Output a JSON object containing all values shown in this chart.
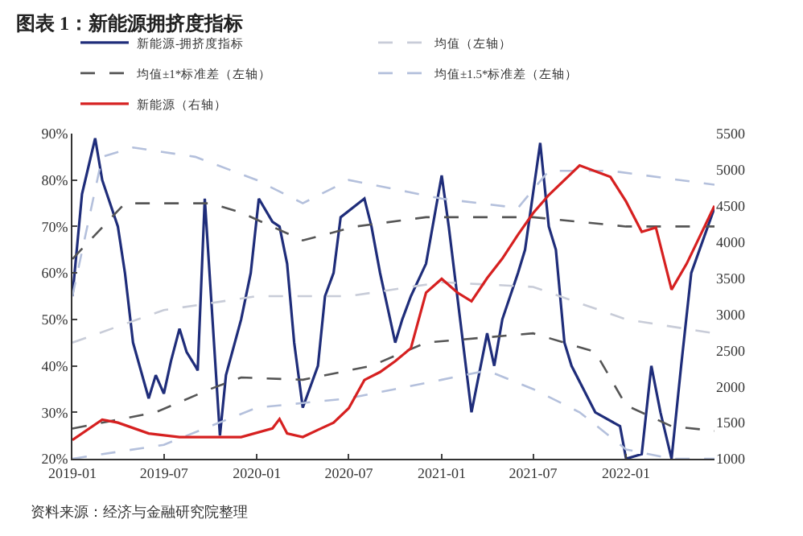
{
  "chart_data": {
    "type": "line",
    "title": "图表 1：新能源拥挤度指标",
    "annotations": [
      "资料来源：经济与金融研究院整理"
    ],
    "xlim": [
      "2019-01-01",
      "2022-06-25"
    ],
    "xticks": [
      {
        "value": "2019-01-01",
        "label": "2019-01"
      },
      {
        "value": "2019-07-01",
        "label": "2019-07"
      },
      {
        "value": "2020-01-01",
        "label": "2020-01"
      },
      {
        "value": "2020-07-01",
        "label": "2020-07"
      },
      {
        "value": "2021-01-01",
        "label": "2021-01"
      },
      {
        "value": "2021-07-01",
        "label": "2021-07"
      },
      {
        "value": "2022-01-01",
        "label": "2022-01"
      }
    ],
    "ylim": [
      20,
      90
    ],
    "yticks": [
      {
        "value": 20,
        "label": "20%"
      },
      {
        "value": 30,
        "label": "30%"
      },
      {
        "value": 40,
        "label": "40%"
      },
      {
        "value": 50,
        "label": "50%"
      },
      {
        "value": 60,
        "label": "60%"
      },
      {
        "value": 70,
        "label": "70%"
      },
      {
        "value": 80,
        "label": "80%"
      },
      {
        "value": 90,
        "label": "90%"
      }
    ],
    "y2lim": [
      1000,
      5500
    ],
    "y2ticks": [
      1000,
      1500,
      2000,
      2500,
      3000,
      3500,
      4000,
      4500,
      5000,
      5500
    ],
    "legend": "top",
    "marker": "none",
    "series": [
      {
        "name": "新能源-拥挤度指标",
        "color": "#1f2d7a",
        "line_style": "solid",
        "x": [
          "2019-01-01",
          "2019-01-20",
          "2019-02-15",
          "2019-03-01",
          "2019-04-01",
          "2019-04-15",
          "2019-05-01",
          "2019-06-01",
          "2019-06-15",
          "2019-07-01",
          "2019-07-15",
          "2019-08-01",
          "2019-08-15",
          "2019-09-01",
          "2019-09-06",
          "2019-09-20",
          "2019-10-20",
          "2019-11-01",
          "2019-12-01",
          "2019-12-20",
          "2020-01-05",
          "2020-02-01",
          "2020-02-15",
          "2020-03-01",
          "2020-03-15",
          "2020-04-01",
          "2020-05-01",
          "2020-05-15",
          "2020-06-01",
          "2020-06-15",
          "2020-08-01",
          "2020-08-15",
          "2020-09-01",
          "2020-10-01",
          "2020-10-15",
          "2020-11-01",
          "2020-12-01",
          "2021-01-01",
          "2021-01-15",
          "2021-03-01",
          "2021-04-01",
          "2021-04-15",
          "2021-05-01",
          "2021-06-01",
          "2021-06-15",
          "2021-07-15",
          "2021-08-01",
          "2021-08-15",
          "2021-09-01",
          "2021-09-15",
          "2021-11-01",
          "2021-12-20",
          "2022-01-01",
          "2022-02-01",
          "2022-02-20",
          "2022-03-10",
          "2022-04-01",
          "2022-04-20",
          "2022-05-10",
          "2022-06-25"
        ],
        "values": [
          55,
          77,
          89,
          80,
          70,
          60,
          45,
          33,
          38,
          34,
          41,
          48,
          43,
          40,
          39,
          76,
          25,
          38,
          50,
          60,
          76,
          71,
          70,
          62,
          45,
          31,
          40,
          55,
          60,
          72,
          76,
          70,
          60,
          45,
          50,
          55,
          62,
          81,
          70,
          30,
          47,
          40,
          50,
          60,
          65,
          88,
          70,
          65,
          45,
          40,
          30,
          27,
          20,
          21,
          40,
          30,
          20,
          40,
          60,
          74
        ]
      },
      {
        "name": "均值（左轴）",
        "color": "#c8ccd8",
        "line_style": "dashed",
        "x": [
          "2019-01-01",
          "2019-07-01",
          "2020-01-01",
          "2020-07-01",
          "2021-01-01",
          "2021-07-01",
          "2022-01-01",
          "2022-06-25"
        ],
        "values": [
          45,
          52,
          55,
          55,
          58,
          57,
          50,
          47
        ]
      },
      {
        "name": "均值±1*标准差（左轴）",
        "color": "#555555",
        "line_style": "dashed",
        "x": [
          "2019-01-01",
          "2019-04-15",
          "2019-10-01",
          "2019-12-01",
          "2020-04-01",
          "2020-07-15",
          "2020-12-01",
          "2021-07-01",
          "2022-01-01",
          "2022-06-25"
        ],
        "values": [
          63,
          75,
          75,
          73,
          67,
          70,
          72,
          72,
          70,
          70
        ]
      },
      {
        "color": "#555555",
        "line_style": "dashed",
        "x": [
          "2019-01-01",
          "2019-06-15",
          "2019-10-01",
          "2019-12-01",
          "2020-04-01",
          "2020-08-15",
          "2020-12-01",
          "2021-07-01",
          "2021-11-01",
          "2022-01-01",
          "2022-04-01",
          "2022-06-25"
        ],
        "values": [
          26.5,
          30,
          35,
          37.5,
          37,
          40,
          45,
          47,
          43,
          31.5,
          27,
          26
        ]
      },
      {
        "name": "均值±1.5*标准差（左轴）",
        "color": "#b4c0dc",
        "line_style": "dashed",
        "x": [
          "2019-01-01",
          "2019-03-01",
          "2019-05-01",
          "2019-09-01",
          "2020-01-01",
          "2020-04-01",
          "2020-07-01",
          "2020-10-01",
          "2021-01-01",
          "2021-06-01",
          "2021-08-01",
          "2021-12-01",
          "2022-06-25"
        ],
        "values": [
          55,
          85,
          87,
          85,
          80,
          75,
          80,
          78,
          76,
          74,
          82,
          82,
          79
        ]
      },
      {
        "color": "#b4c0dc",
        "line_style": "dashed",
        "x": [
          "2019-01-01",
          "2019-07-01",
          "2020-01-01",
          "2020-04-01",
          "2020-07-01",
          "2020-10-01",
          "2021-01-01",
          "2021-04-01",
          "2021-07-01",
          "2021-10-01",
          "2022-01-01",
          "2022-04-01",
          "2022-06-25"
        ],
        "values": [
          20,
          23,
          31,
          32,
          33,
          35,
          37,
          39,
          35,
          30,
          22,
          20,
          20
        ]
      },
      {
        "name": "新能源（右轴）",
        "color": "#d62020",
        "line_style": "solid",
        "axis": "y2",
        "x": [
          "2019-01-01",
          "2019-03-01",
          "2019-04-01",
          "2019-06-01",
          "2019-08-01",
          "2019-10-01",
          "2019-12-01",
          "2020-02-01",
          "2020-02-15",
          "2020-03-01",
          "2020-04-01",
          "2020-05-01",
          "2020-06-01",
          "2020-07-01",
          "2020-08-01",
          "2020-09-01",
          "2020-10-01",
          "2020-11-01",
          "2020-12-01",
          "2021-01-01",
          "2021-02-01",
          "2021-03-01",
          "2021-04-01",
          "2021-05-01",
          "2021-06-01",
          "2021-07-01",
          "2021-08-01",
          "2021-10-01",
          "2021-12-01",
          "2022-01-01",
          "2022-02-01",
          "2022-03-01",
          "2022-04-01",
          "2022-05-01",
          "2022-06-25"
        ],
        "values": [
          1260,
          1540,
          1500,
          1350,
          1300,
          1300,
          1300,
          1420,
          1550,
          1350,
          1300,
          1400,
          1500,
          1700,
          2090,
          2200,
          2350,
          2530,
          3300,
          3490,
          3300,
          3180,
          3500,
          3770,
          4100,
          4400,
          4650,
          5060,
          4900,
          4560,
          4140,
          4200,
          3340,
          3700,
          4500
        ]
      }
    ]
  }
}
